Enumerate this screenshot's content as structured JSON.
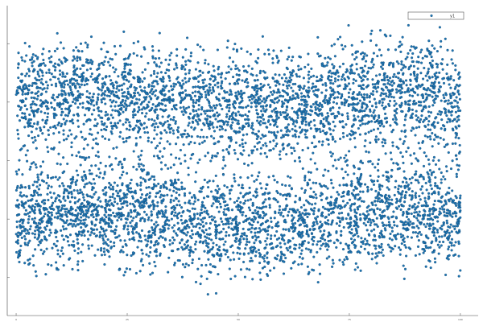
{
  "chart_data": {
    "type": "scatter",
    "title": "",
    "xlabel": "",
    "ylabel": "",
    "xlim": [
      -2,
      104
    ],
    "ylim": [
      -5.3,
      5.3
    ],
    "xticks": [
      0,
      25,
      50,
      75,
      100
    ],
    "yticks": [
      -4,
      -2,
      0,
      2,
      4
    ],
    "ytick_labels_visible": false,
    "grid": false,
    "legend": {
      "position": "top-right",
      "entries": [
        {
          "label": "y1"
        }
      ]
    },
    "series": [
      {
        "name": "y1",
        "color": "#1f77b4",
        "marker": "circle",
        "edge_color": "#0b3d66",
        "description_of_distribution": {
          "x_range": [
            0,
            100
          ],
          "bands": [
            {
              "center": 2.1,
              "spread": 0.75
            },
            {
              "center": -2.0,
              "spread": 0.75
            }
          ],
          "gap_center_oscillates_with_x": true
        }
      }
    ]
  }
}
